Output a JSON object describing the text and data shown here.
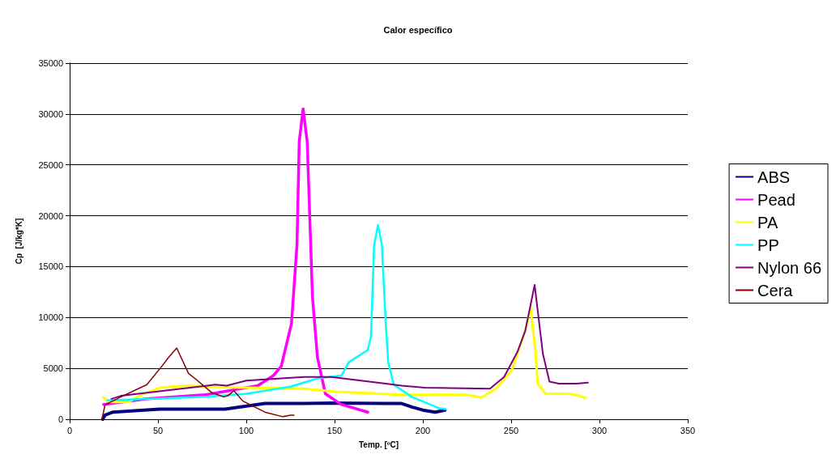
{
  "chart_data": {
    "type": "line",
    "title": "Calor específico",
    "xlabel": "Temp. [ºC]",
    "ylabel": "Cp  [J/kg*K]",
    "xlim": [
      0,
      350
    ],
    "xticks": [
      0,
      50,
      100,
      150,
      200,
      250,
      300,
      350
    ],
    "ylim": [
      0,
      35000
    ],
    "yticks": [
      0,
      5000,
      10000,
      15000,
      20000,
      25000,
      30000,
      35000
    ],
    "grid": "y",
    "legend": "right",
    "marker": "none",
    "line_style": "solid",
    "series": [
      {
        "name": "ABS",
        "color": "#000080",
        "x": [
          18.7,
          20,
          24.5,
          51,
          88,
          100,
          110.5,
          132.7,
          148,
          179,
          188,
          193.8,
          200,
          207,
          212.5
        ],
        "values": [
          0,
          400,
          700,
          1000,
          1000,
          1300,
          1550,
          1550,
          1600,
          1550,
          1550,
          1200,
          900,
          700,
          900
        ]
      },
      {
        "name": "Pead",
        "color": "#ff00ff",
        "x": [
          19.2,
          43.7,
          76.6,
          106.5,
          115.4,
          119.8,
          125.6,
          128.7,
          130,
          132.2,
          134.5,
          137.5,
          140.3,
          144.8,
          153.7,
          168.8
        ],
        "values": [
          1460,
          2000,
          2400,
          3300,
          4300,
          5200,
          9400,
          17100,
          27300,
          30500,
          27300,
          12000,
          6100,
          2500,
          1460,
          700
        ]
      },
      {
        "name": "PA",
        "color": "#ffff00",
        "x": [
          19,
          22.7,
          33.4,
          40.5,
          51,
          66,
          88,
          133,
          151,
          188,
          223.6,
          233.4,
          241.4,
          250.3,
          258,
          261,
          263.7,
          265,
          269.5,
          283,
          289,
          291.8
        ],
        "values": [
          2150,
          1700,
          1700,
          2400,
          3100,
          3300,
          3150,
          3000,
          2700,
          2400,
          2400,
          2150,
          3000,
          4800,
          8700,
          11000,
          6800,
          3500,
          2500,
          2500,
          2300,
          2100
        ]
      },
      {
        "name": "PP",
        "color": "#00ffff",
        "x": [
          21.4,
          76.6,
          100,
          125,
          140,
          154,
          158,
          168.8,
          170.6,
          172.4,
          174.6,
          176.8,
          179,
          180.4,
          183.5,
          193.8,
          208.9,
          212.9
        ],
        "values": [
          1840,
          2200,
          2500,
          3200,
          4000,
          4300,
          5600,
          6800,
          8100,
          17100,
          19100,
          17100,
          9400,
          5600,
          3400,
          2200,
          1100,
          1000
        ]
      },
      {
        "name": "Nylon 66",
        "color": "#800080",
        "x": [
          23.6,
          29,
          58.4,
          82.4,
          89,
          100,
          132.7,
          148,
          179,
          188,
          201,
          238,
          246,
          253.5,
          258,
          263.3,
          268,
          271.7,
          277,
          287,
          293.5
        ],
        "values": [
          2000,
          2300,
          2900,
          3400,
          3300,
          3800,
          4150,
          4150,
          3500,
          3300,
          3100,
          3000,
          4150,
          6600,
          8700,
          13200,
          6400,
          3700,
          3500,
          3500,
          3600
        ]
      },
      {
        "name": "Cera",
        "color": "#800000",
        "x": [
          18.3,
          20,
          29,
          43.7,
          52.6,
          55.7,
          60.6,
          67.3,
          71.7,
          80.6,
          87.3,
          89.5,
          93,
          98,
          110.5,
          120.7,
          125,
          127
        ],
        "values": [
          0,
          1400,
          2200,
          3400,
          5300,
          6000,
          7000,
          4500,
          3900,
          2600,
          2200,
          2300,
          2800,
          1800,
          700,
          250,
          400,
          400
        ]
      }
    ]
  }
}
